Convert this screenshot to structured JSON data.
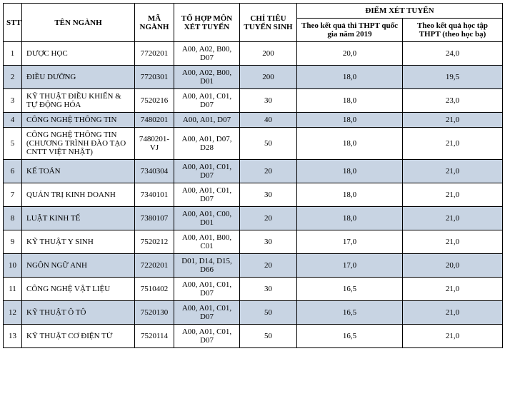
{
  "headers": {
    "stt": "STT",
    "name": "TÊN NGÀNH",
    "code": "MÃ NGÀNH",
    "combo": "TỔ HỢP MÔN XÉT TUYỂN",
    "quota": "CHỈ TIÊU TUYỂN SINH",
    "score_group": "ĐIỂM XÉT TUYỂN",
    "score1": "Theo kết quả thi THPT quốc gia năm 2019",
    "score2": "Theo kết quả học tập THPT (theo học bạ)"
  },
  "rows": [
    {
      "stt": "1",
      "name": "DƯỢC HỌC",
      "code": "7720201",
      "combo": "A00, A02, B00, D07",
      "quota": "200",
      "s1": "20,0",
      "s2": "24,0",
      "shade": false
    },
    {
      "stt": "2",
      "name": "ĐIỀU DƯỠNG",
      "code": "7720301",
      "combo": "A00, A02, B00, D01",
      "quota": "200",
      "s1": "18,0",
      "s2": "19,5",
      "shade": true
    },
    {
      "stt": "3",
      "name": "KỸ THUẬT ĐIỀU KHIỂN & TỰ ĐỘNG HÓA",
      "code": "7520216",
      "combo": "A00, A01, C01, D07",
      "quota": "30",
      "s1": "18,0",
      "s2": "23,0",
      "shade": false
    },
    {
      "stt": "4",
      "name": "CÔNG NGHỆ THÔNG TIN",
      "code": "7480201",
      "combo": "A00, A01, D07",
      "quota": "40",
      "s1": "18,0",
      "s2": "21,0",
      "shade": true
    },
    {
      "stt": "5",
      "name": "CÔNG NGHỆ THÔNG TIN (CHƯƠNG TRÌNH ĐÀO TẠO CNTT VIỆT NHẬT)",
      "code": "7480201-VJ",
      "combo": "A00, A01, D07, D28",
      "quota": "50",
      "s1": "18,0",
      "s2": "21,0",
      "shade": false
    },
    {
      "stt": "6",
      "name": "KẾ TOÁN",
      "code": "7340304",
      "combo": "A00, A01, C01, D07",
      "quota": "20",
      "s1": "18,0",
      "s2": "21,0",
      "shade": true
    },
    {
      "stt": "7",
      "name": "QUẢN TRỊ KINH DOANH",
      "code": "7340101",
      "combo": "A00, A01, C01, D07",
      "quota": "30",
      "s1": "18,0",
      "s2": "21,0",
      "shade": false
    },
    {
      "stt": "8",
      "name": "LUẬT KINH TẾ",
      "code": "7380107",
      "combo": "A00, A01, C00, D01",
      "quota": "20",
      "s1": "18,0",
      "s2": "21,0",
      "shade": true
    },
    {
      "stt": "9",
      "name": "KỸ THUẬT Y SINH",
      "code": "7520212",
      "combo": "A00, A01, B00, C01",
      "quota": "30",
      "s1": "17,0",
      "s2": "21,0",
      "shade": false
    },
    {
      "stt": "10",
      "name": "NGÔN NGỮ ANH",
      "code": "7220201",
      "combo": "D01, D14, D15, D66",
      "quota": "20",
      "s1": "17,0",
      "s2": "20,0",
      "shade": true
    },
    {
      "stt": "11",
      "name": "CÔNG NGHỆ VẬT LIỆU",
      "code": "7510402",
      "combo": "A00, A01, C01, D07",
      "quota": "30",
      "s1": "16,5",
      "s2": "21,0",
      "shade": false
    },
    {
      "stt": "12",
      "name": "KỸ THUẬT Ô TÔ",
      "code": "7520130",
      "combo": "A00, A01, C01, D07",
      "quota": "50",
      "s1": "16,5",
      "s2": "21,0",
      "shade": true
    },
    {
      "stt": "13",
      "name": "KỸ THUẬT CƠ ĐIỆN TỬ",
      "code": "7520114",
      "combo": "A00, A01, C01, D07",
      "quota": "50",
      "s1": "16,5",
      "s2": "21,0",
      "shade": false
    }
  ]
}
